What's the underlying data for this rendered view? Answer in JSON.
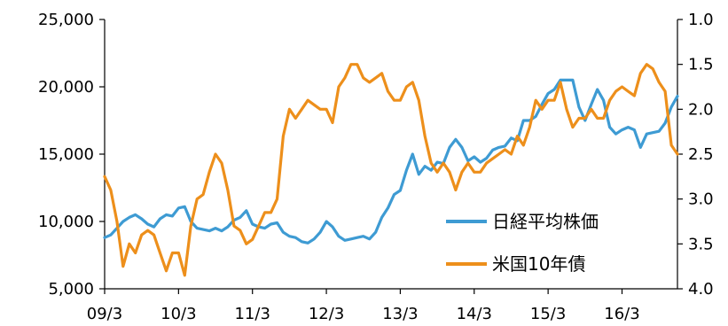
{
  "chart_data": {
    "type": "line",
    "title": "",
    "xlabel": "",
    "ylabel": "",
    "x_ticks": [
      "09/3",
      "10/3",
      "11/3",
      "12/3",
      "13/3",
      "14/3",
      "15/3",
      "16/3"
    ],
    "y_left": {
      "lim": [
        5000,
        25000
      ],
      "ticks": [
        "5,000",
        "10,000",
        "15,000",
        "20,000",
        "25,000"
      ]
    },
    "y_right": {
      "lim": [
        1.0,
        4.0
      ],
      "inverted": true,
      "ticks": [
        "1.0",
        "1.5",
        "2.0",
        "2.5",
        "3.0",
        "3.5",
        "4.0"
      ]
    },
    "grid": false,
    "legend": "bottom-right",
    "x_dates": [
      "2009-03",
      "2009-04",
      "2009-05",
      "2009-06",
      "2009-07",
      "2009-08",
      "2009-09",
      "2009-10",
      "2009-11",
      "2009-12",
      "2010-01",
      "2010-02",
      "2010-03",
      "2010-04",
      "2010-05",
      "2010-06",
      "2010-07",
      "2010-08",
      "2010-09",
      "2010-10",
      "2010-11",
      "2010-12",
      "2011-01",
      "2011-02",
      "2011-03",
      "2011-04",
      "2011-05",
      "2011-06",
      "2011-07",
      "2011-08",
      "2011-09",
      "2011-10",
      "2011-11",
      "2011-12",
      "2012-01",
      "2012-02",
      "2012-03",
      "2012-04",
      "2012-05",
      "2012-06",
      "2012-07",
      "2012-08",
      "2012-09",
      "2012-10",
      "2012-11",
      "2012-12",
      "2013-01",
      "2013-02",
      "2013-03",
      "2013-04",
      "2013-05",
      "2013-06",
      "2013-07",
      "2013-08",
      "2013-09",
      "2013-10",
      "2013-11",
      "2013-12",
      "2014-01",
      "2014-02",
      "2014-03",
      "2014-04",
      "2014-05",
      "2014-06",
      "2014-07",
      "2014-08",
      "2014-09",
      "2014-10",
      "2014-11",
      "2014-12",
      "2015-01",
      "2015-02",
      "2015-03",
      "2015-04",
      "2015-05",
      "2015-06",
      "2015-07",
      "2015-08",
      "2015-09",
      "2015-10",
      "2015-11",
      "2015-12",
      "2016-01",
      "2016-02",
      "2016-03",
      "2016-04",
      "2016-05",
      "2016-06",
      "2016-07",
      "2016-08",
      "2016-09",
      "2016-10",
      "2016-11",
      "2016-12"
    ],
    "series": [
      {
        "name": "日経平均株価",
        "color": "#3e9bd3",
        "axis": "left",
        "values": [
          8800,
          9000,
          9500,
          10000,
          10300,
          10500,
          10200,
          9800,
          9600,
          10200,
          10500,
          10400,
          11000,
          11100,
          10000,
          9500,
          9400,
          9300,
          9500,
          9300,
          9600,
          10100,
          10300,
          10800,
          9800,
          9600,
          9500,
          9800,
          9900,
          9200,
          8900,
          8800,
          8500,
          8400,
          8700,
          9200,
          10000,
          9600,
          8900,
          8600,
          8700,
          8800,
          8900,
          8700,
          9200,
          10300,
          11000,
          12000,
          12300,
          13800,
          15000,
          13500,
          14100,
          13800,
          14400,
          14300,
          15500,
          16100,
          15500,
          14500,
          14800,
          14400,
          14700,
          15300,
          15500,
          15600,
          16200,
          16000,
          17500,
          17500,
          17800,
          18700,
          19500,
          19800,
          20500,
          20500,
          20500,
          18500,
          17500,
          18700,
          19800,
          19000,
          17000,
          16500,
          16800,
          17000,
          16800,
          15500,
          16500,
          16600,
          16700,
          17300,
          18500,
          19300
        ]
      },
      {
        "name": "米国10年債",
        "color": "#ed8f1b",
        "axis": "right",
        "values": [
          2.75,
          2.9,
          3.25,
          3.75,
          3.5,
          3.6,
          3.4,
          3.35,
          3.4,
          3.6,
          3.8,
          3.6,
          3.6,
          3.85,
          3.3,
          3.0,
          2.95,
          2.7,
          2.5,
          2.6,
          2.9,
          3.3,
          3.35,
          3.5,
          3.45,
          3.3,
          3.15,
          3.15,
          3.0,
          2.3,
          2.0,
          2.1,
          2.0,
          1.9,
          1.95,
          2.0,
          2.0,
          2.15,
          1.75,
          1.65,
          1.5,
          1.5,
          1.65,
          1.7,
          1.65,
          1.6,
          1.8,
          1.9,
          1.9,
          1.75,
          1.7,
          1.9,
          2.3,
          2.6,
          2.7,
          2.6,
          2.7,
          2.9,
          2.7,
          2.6,
          2.7,
          2.7,
          2.6,
          2.55,
          2.5,
          2.45,
          2.5,
          2.3,
          2.4,
          2.2,
          1.9,
          2.0,
          1.9,
          1.9,
          1.7,
          2.0,
          2.2,
          2.1,
          2.1,
          2.0,
          2.1,
          2.1,
          1.9,
          1.8,
          1.75,
          1.8,
          1.85,
          1.6,
          1.5,
          1.55,
          1.7,
          1.8,
          2.4,
          2.5
        ]
      }
    ]
  }
}
